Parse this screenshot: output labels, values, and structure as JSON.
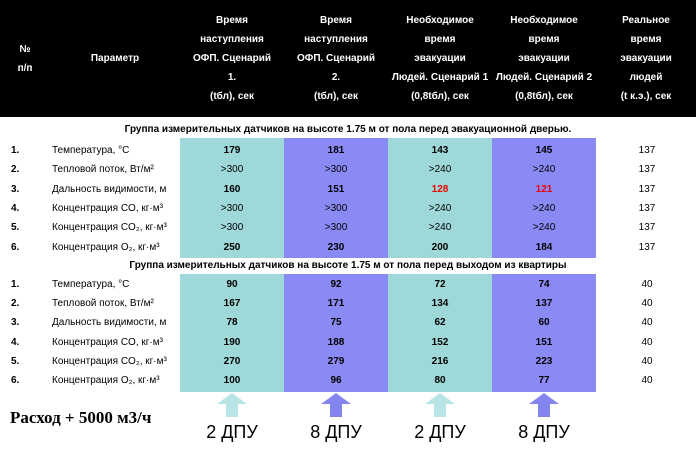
{
  "header": {
    "num": "№\nп/п",
    "param": "Параметр",
    "col1": "Время\nнаступления\nОФП. Сценарий\n1.\n(tбл), сек",
    "col2": "Время\nнаступления\nОФП. Сценарий\n2.\n(tбл), сек",
    "col3": "Необходимое\nвремя\nэвакуации\nЛюдей. Сценарий 1\n(0,8tбл), сек",
    "col4": "Необходимое\nвремя\nэвакуации\nЛюдей. Сценарий 2\n(0,8tбл), сек",
    "col5": "Реальное\nвремя\nэвакуации\nлюдей\n(t к.э.), сек"
  },
  "group1": {
    "title": "Группа измерительных датчиков на высоте 1.75 м от пола перед эвакуационной дверью.",
    "rows": [
      {
        "num": "1.",
        "param": "Температура, °С",
        "c1": "179",
        "c2": "181",
        "c3": "143",
        "c4": "145",
        "real": "137"
      },
      {
        "num": "2.",
        "param": "Тепловой поток, Вт/м²",
        "c1": ">300",
        "c2": ">300",
        "c3": ">240",
        "c4": ">240",
        "real": "137"
      },
      {
        "num": "3.",
        "param": "Дальность видимости, м",
        "c1": "160",
        "c2": "151",
        "c3": "128",
        "c4": "121",
        "real": "137"
      },
      {
        "num": "4.",
        "param": "Концентрация CO, кг·м³",
        "c1": ">300",
        "c2": ">300",
        "c3": ">240",
        "c4": ">240",
        "real": "137"
      },
      {
        "num": "5.",
        "param": "Концентрация CO₂, кг·м³",
        "c1": ">300",
        "c2": ">300",
        "c3": ">240",
        "c4": ">240",
        "real": "137"
      },
      {
        "num": "6.",
        "param": "Концентрация O₂, кг·м³",
        "c1": "250",
        "c2": "230",
        "c3": "200",
        "c4": "184",
        "real": "137"
      }
    ]
  },
  "group2": {
    "title": "Группа измерительных датчиков на высоте 1.75 м от пола перед выходом из квартиры",
    "rows": [
      {
        "num": "1.",
        "param": "Температура, °С",
        "c1": "90",
        "c2": "92",
        "c3": "72",
        "c4": "74",
        "real": "40"
      },
      {
        "num": "2.",
        "param": "Тепловой поток, Вт/м²",
        "c1": "167",
        "c2": "171",
        "c3": "134",
        "c4": "137",
        "real": "40"
      },
      {
        "num": "3.",
        "param": "Дальность видимости, м",
        "c1": "78",
        "c2": "75",
        "c3": "62",
        "c4": "60",
        "real": "40"
      },
      {
        "num": "4.",
        "param": "Концентрация CO, кг·м³",
        "c1": "190",
        "c2": "188",
        "c3": "152",
        "c4": "151",
        "real": "40"
      },
      {
        "num": "5.",
        "param": "Концентрация CO₂, кг·м³",
        "c1": "270",
        "c2": "279",
        "c3": "216",
        "c4": "223",
        "real": "40"
      },
      {
        "num": "6.",
        "param": "Концентрация O₂, кг·м³",
        "c1": "100",
        "c2": "96",
        "c3": "80",
        "c4": "77",
        "real": "40"
      }
    ]
  },
  "footer": {
    "flow": "Расход + 5000 м3/ч",
    "dpu": [
      "2 ДПУ",
      "8 ДПУ",
      "2 ДПУ",
      "8 ДПУ"
    ]
  },
  "colors": {
    "teal": "#9ed8d8",
    "purple": "#8a8af4",
    "red": "#e00000",
    "arrow_teal": "#b7e4e4",
    "arrow_purple": "#8585f0"
  }
}
